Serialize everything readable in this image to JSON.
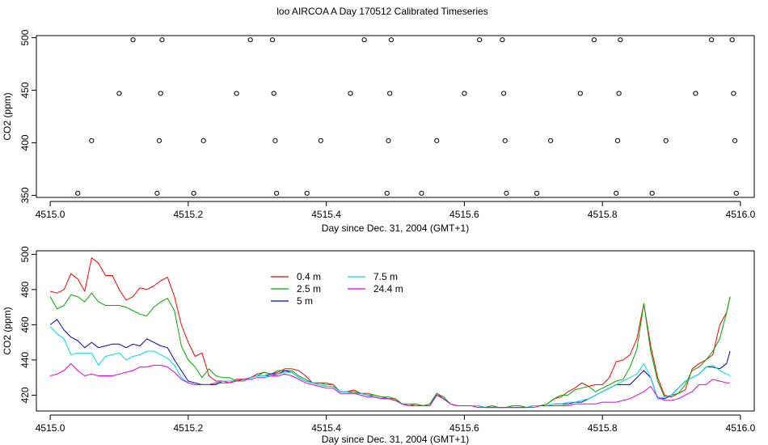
{
  "title": "loo AIRCOA A  Day 170512  Calibrated Timeseries",
  "chart_data": [
    {
      "type": "scatter",
      "title": "",
      "xlabel": "Day since Dec. 31, 2004 (GMT+1)",
      "ylabel": "CO2 (ppm)",
      "xlim": [
        4514.98,
        4516.02
      ],
      "ylim": [
        348,
        502
      ],
      "xticks": [
        "4515.0",
        "4515.2",
        "4515.4",
        "4515.6",
        "4515.8",
        "4516.0"
      ],
      "yticks": [
        "350",
        "400",
        "450",
        "500"
      ],
      "grid": false,
      "legend": "none",
      "marker": "open-circle",
      "points": [
        {
          "x": 4515.04,
          "y": 352
        },
        {
          "x": 4515.06,
          "y": 402
        },
        {
          "x": 4515.1,
          "y": 447
        },
        {
          "x": 4515.12,
          "y": 498
        },
        {
          "x": 4515.155,
          "y": 352
        },
        {
          "x": 4515.158,
          "y": 402
        },
        {
          "x": 4515.16,
          "y": 447
        },
        {
          "x": 4515.162,
          "y": 498
        },
        {
          "x": 4515.208,
          "y": 352
        },
        {
          "x": 4515.222,
          "y": 402
        },
        {
          "x": 4515.27,
          "y": 447
        },
        {
          "x": 4515.29,
          "y": 498
        },
        {
          "x": 4515.322,
          "y": 498
        },
        {
          "x": 4515.324,
          "y": 447
        },
        {
          "x": 4515.326,
          "y": 402
        },
        {
          "x": 4515.328,
          "y": 352
        },
        {
          "x": 4515.372,
          "y": 352
        },
        {
          "x": 4515.392,
          "y": 402
        },
        {
          "x": 4515.435,
          "y": 447
        },
        {
          "x": 4515.455,
          "y": 498
        },
        {
          "x": 4515.488,
          "y": 352
        },
        {
          "x": 4515.49,
          "y": 402
        },
        {
          "x": 4515.492,
          "y": 447
        },
        {
          "x": 4515.494,
          "y": 498
        },
        {
          "x": 4515.538,
          "y": 352
        },
        {
          "x": 4515.56,
          "y": 402
        },
        {
          "x": 4515.6,
          "y": 447
        },
        {
          "x": 4515.622,
          "y": 498
        },
        {
          "x": 4515.655,
          "y": 498
        },
        {
          "x": 4515.657,
          "y": 447
        },
        {
          "x": 4515.659,
          "y": 402
        },
        {
          "x": 4515.661,
          "y": 352
        },
        {
          "x": 4515.705,
          "y": 352
        },
        {
          "x": 4515.725,
          "y": 402
        },
        {
          "x": 4515.768,
          "y": 447
        },
        {
          "x": 4515.788,
          "y": 498
        },
        {
          "x": 4515.82,
          "y": 352
        },
        {
          "x": 4515.822,
          "y": 402
        },
        {
          "x": 4515.824,
          "y": 447
        },
        {
          "x": 4515.826,
          "y": 498
        },
        {
          "x": 4515.872,
          "y": 352
        },
        {
          "x": 4515.892,
          "y": 402
        },
        {
          "x": 4515.935,
          "y": 447
        },
        {
          "x": 4515.958,
          "y": 498
        },
        {
          "x": 4515.988,
          "y": 498
        },
        {
          "x": 4515.99,
          "y": 447
        },
        {
          "x": 4515.992,
          "y": 402
        },
        {
          "x": 4515.994,
          "y": 352
        }
      ]
    },
    {
      "type": "line",
      "title": "",
      "xlabel": "Day since Dec. 31, 2004 (GMT+1)",
      "ylabel": "CO2 (ppm)",
      "xlim": [
        4514.98,
        4516.02
      ],
      "ylim": [
        411,
        502
      ],
      "xticks": [
        "4515.0",
        "4515.2",
        "4515.4",
        "4515.6",
        "4515.8",
        "4516.0"
      ],
      "yticks": [
        "420",
        "440",
        "460",
        "480",
        "500"
      ],
      "grid": false,
      "legend": "top-left",
      "x": [
        4515.0,
        4515.01,
        4515.02,
        4515.03,
        4515.04,
        4515.05,
        4515.06,
        4515.07,
        4515.08,
        4515.09,
        4515.1,
        4515.11,
        4515.12,
        4515.13,
        4515.14,
        4515.15,
        4515.16,
        4515.17,
        4515.18,
        4515.19,
        4515.2,
        4515.21,
        4515.22,
        4515.23,
        4515.24,
        4515.25,
        4515.26,
        4515.27,
        4515.28,
        4515.29,
        4515.3,
        4515.31,
        4515.32,
        4515.33,
        4515.34,
        4515.35,
        4515.36,
        4515.37,
        4515.38,
        4515.39,
        4515.4,
        4515.41,
        4515.42,
        4515.43,
        4515.44,
        4515.45,
        4515.46,
        4515.47,
        4515.48,
        4515.49,
        4515.5,
        4515.51,
        4515.52,
        4515.53,
        4515.54,
        4515.55,
        4515.56,
        4515.57,
        4515.58,
        4515.59,
        4515.6,
        4515.61,
        4515.62,
        4515.63,
        4515.64,
        4515.65,
        4515.66,
        4515.67,
        4515.68,
        4515.69,
        4515.7,
        4515.71,
        4515.72,
        4515.73,
        4515.74,
        4515.75,
        4515.76,
        4515.77,
        4515.78,
        4515.79,
        4515.8,
        4515.81,
        4515.82,
        4515.83,
        4515.84,
        4515.85,
        4515.86,
        4515.87,
        4515.88,
        4515.89,
        4515.9,
        4515.91,
        4515.92,
        4515.93,
        4515.94,
        4515.95,
        4515.96,
        4515.97,
        4515.98,
        4515.985
      ],
      "series": [
        {
          "name": "0.4 m",
          "color": "#ff0000",
          "values": [
            479,
            478,
            480,
            489,
            486,
            479,
            498,
            495,
            488,
            488,
            480,
            474,
            476,
            481,
            480,
            482,
            485,
            487,
            476,
            460,
            450,
            442,
            444,
            431,
            428,
            428,
            427,
            429,
            429,
            430,
            432,
            433,
            432,
            433,
            435,
            435,
            434,
            431,
            427,
            427,
            427,
            426,
            422,
            422,
            423,
            421,
            421,
            420,
            419,
            418,
            418,
            415,
            414,
            415,
            414,
            415,
            421,
            418,
            415,
            414,
            414,
            414,
            414,
            413,
            414,
            413,
            413,
            414,
            414,
            413,
            414,
            414,
            415,
            418,
            419,
            422,
            424,
            427,
            425,
            426,
            426,
            430,
            439,
            440,
            443,
            452,
            472,
            448,
            430,
            420,
            419,
            421,
            423,
            435,
            438,
            440,
            443,
            460,
            467,
            476
          ]
        },
        {
          "name": "2.5 m",
          "color": "#00aa00",
          "values": [
            476,
            469,
            471,
            477,
            476,
            473,
            478,
            473,
            471,
            471,
            471,
            470,
            468,
            466,
            465,
            470,
            473,
            475,
            468,
            448,
            440,
            436,
            430,
            435,
            431,
            430,
            430,
            428,
            428,
            430,
            431,
            433,
            432,
            434,
            434,
            434,
            431,
            429,
            427,
            427,
            426,
            426,
            422,
            422,
            422,
            421,
            420,
            420,
            419,
            419,
            418,
            415,
            415,
            415,
            414,
            415,
            421,
            419,
            415,
            414,
            414,
            414,
            414,
            413,
            414,
            413,
            413,
            414,
            414,
            413,
            414,
            414,
            415,
            418,
            420,
            420,
            423,
            424,
            425,
            422,
            424,
            426,
            428,
            429,
            436,
            446,
            472,
            445,
            428,
            419,
            420,
            421,
            426,
            434,
            436,
            440,
            445,
            452,
            467,
            476
          ]
        },
        {
          "name": "5 m",
          "color": "#0000cc",
          "values": [
            460,
            463,
            457,
            453,
            451,
            447,
            450,
            447,
            448,
            449,
            449,
            447,
            449,
            448,
            452,
            450,
            448,
            447,
            440,
            434,
            428,
            427,
            426,
            426,
            426,
            428,
            428,
            428,
            429,
            430,
            431,
            431,
            432,
            432,
            434,
            433,
            430,
            428,
            427,
            426,
            425,
            425,
            422,
            422,
            421,
            421,
            420,
            419,
            418,
            418,
            417,
            415,
            414,
            414,
            414,
            414,
            420,
            418,
            415,
            414,
            414,
            414,
            414,
            413,
            413,
            413,
            413,
            413,
            413,
            413,
            414,
            414,
            414,
            415,
            415,
            415,
            416,
            416,
            418,
            420,
            422,
            424,
            426,
            426,
            426,
            430,
            434,
            430,
            418,
            418,
            420,
            424,
            428,
            430,
            432,
            436,
            436,
            435,
            438,
            445
          ]
        },
        {
          "name": "7.5 m",
          "color": "#00dddd",
          "values": [
            459,
            455,
            452,
            443,
            444,
            444,
            444,
            437,
            442,
            443,
            444,
            440,
            442,
            443,
            445,
            445,
            443,
            441,
            437,
            430,
            427,
            426,
            426,
            426,
            427,
            428,
            428,
            428,
            429,
            430,
            431,
            431,
            431,
            432,
            433,
            433,
            430,
            428,
            427,
            426,
            425,
            425,
            422,
            422,
            421,
            421,
            420,
            419,
            418,
            418,
            417,
            415,
            414,
            414,
            414,
            414,
            420,
            418,
            415,
            414,
            414,
            414,
            414,
            413,
            413,
            413,
            413,
            413,
            413,
            413,
            414,
            414,
            414,
            415,
            415,
            416,
            416,
            417,
            418,
            420,
            422,
            424,
            426,
            428,
            430,
            432,
            438,
            430,
            418,
            419,
            420,
            424,
            428,
            430,
            432,
            436,
            437,
            434,
            432,
            431
          ]
        },
        {
          "name": "24.4 m",
          "color": "#dd00dd",
          "values": [
            431,
            432,
            434,
            438,
            434,
            431,
            432,
            431,
            431,
            431,
            432,
            433,
            434,
            436,
            436,
            437,
            437,
            436,
            433,
            429,
            427,
            426,
            426,
            426,
            427,
            427,
            427,
            428,
            429,
            429,
            430,
            430,
            431,
            431,
            432,
            431,
            429,
            427,
            426,
            425,
            424,
            424,
            421,
            421,
            421,
            420,
            419,
            419,
            418,
            418,
            417,
            415,
            414,
            414,
            414,
            414,
            420,
            418,
            415,
            414,
            414,
            414,
            413,
            413,
            413,
            413,
            413,
            413,
            413,
            413,
            413,
            414,
            414,
            414,
            414,
            414,
            415,
            415,
            415,
            415,
            416,
            416,
            416,
            417,
            418,
            420,
            422,
            425,
            419,
            417,
            417,
            418,
            420,
            422,
            426,
            426,
            429,
            428,
            427,
            427
          ]
        }
      ]
    }
  ]
}
